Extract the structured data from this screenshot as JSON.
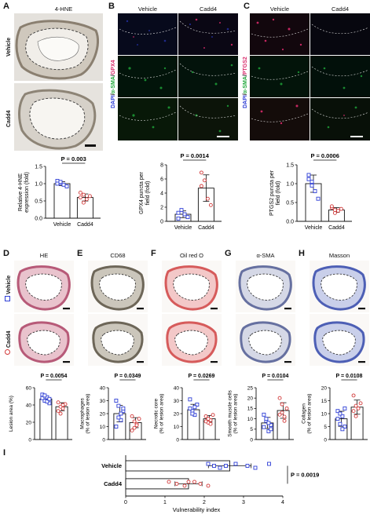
{
  "colors": {
    "vehicle": "#2f3fd6",
    "cadd4": "#d23a3a",
    "dapi": "#2f3fd6",
    "sma": "#1fa83a",
    "gpx4": "#d82a6a"
  },
  "panelA": {
    "label": "A",
    "title": "4-HNE",
    "rows": [
      "Vehicle",
      "Cadd4"
    ]
  },
  "panelB": {
    "label": "B",
    "cols": [
      "Vehicle",
      "Cadd4"
    ],
    "side": [
      "DAPI",
      "/",
      "α-SMA",
      "/",
      "GPX4"
    ]
  },
  "panelC": {
    "label": "C",
    "cols": [
      "Vehicle",
      "Cadd4"
    ],
    "side": [
      "DAPI",
      "/",
      "α-SMA",
      "/",
      "PTGS2"
    ]
  },
  "panelsDH": [
    {
      "label": "D",
      "title": "HE"
    },
    {
      "label": "E",
      "title": "CD68"
    },
    {
      "label": "F",
      "title": "Oil red O"
    },
    {
      "label": "G",
      "title": "α-SMA"
    },
    {
      "label": "H",
      "title": "Masson"
    }
  ],
  "rowLabels": [
    "Vehicle",
    "Cadd4"
  ],
  "chart_data": [
    {
      "type": "bar",
      "panel": "A",
      "categories": [
        "Vehicle",
        "Cadd4"
      ],
      "values": [
        1.0,
        0.6
      ],
      "ylabel": "Relative 4-HNE expression (fold)",
      "ylim": [
        0,
        1.5
      ],
      "yticks": [
        "0.0",
        "0.5",
        "1.0",
        "1.5"
      ],
      "pvalue": "P = 0.003",
      "points": [
        [
          1.08,
          1.02,
          0.97,
          0.92,
          1.0,
          1.05
        ],
        [
          0.74,
          0.45,
          0.55,
          0.64,
          0.6,
          0.68
        ]
      ]
    },
    {
      "type": "bar",
      "panel": "B",
      "categories": [
        "Vehicle",
        "Cadd4"
      ],
      "values": [
        1.0,
        4.7
      ],
      "ylabel": "GPX4 puncta per field (fold)",
      "ylim": [
        0,
        8
      ],
      "yticks": [
        "0",
        "2",
        "4",
        "6",
        "8"
      ],
      "pvalue": "P = 0.0014",
      "points": [
        [
          0.4,
          1.6,
          1.0,
          0.6,
          1.2
        ],
        [
          6.9,
          5.8,
          3.2,
          2.3,
          5.0
        ]
      ]
    },
    {
      "type": "bar",
      "panel": "C",
      "categories": [
        "Vehicle",
        "Cadd4"
      ],
      "values": [
        1.0,
        0.3
      ],
      "ylabel": "PTGS2 puncta per field (fold)",
      "ylim": [
        0,
        1.5
      ],
      "yticks": [
        "0.0",
        "0.5",
        "1.0",
        "1.5"
      ],
      "pvalue": "P = 0.0006",
      "points": [
        [
          1.23,
          1.05,
          0.8,
          0.6,
          1.12,
          0.95
        ],
        [
          0.36,
          0.22,
          0.28,
          0.33,
          0.4,
          0.3
        ]
      ]
    },
    {
      "type": "bar",
      "panel": "D",
      "categories": [
        "",
        ""
      ],
      "values": [
        47,
        38
      ],
      "ylabel": "Lesion area (%)",
      "ylim": [
        0,
        60
      ],
      "yticks": [
        "0",
        "20",
        "40",
        "60"
      ],
      "pvalue": "P = 0.0054",
      "points": [
        [
          52,
          45,
          49,
          42,
          48,
          51,
          44,
          47
        ],
        [
          43,
          30,
          36,
          41,
          33,
          38,
          40
        ]
      ]
    },
    {
      "type": "bar",
      "panel": "E",
      "categories": [
        "",
        ""
      ],
      "values": [
        20,
        13
      ],
      "ylabel": "Macrophages (% of lesion area)",
      "ylim": [
        0,
        40
      ],
      "yticks": [
        "0",
        "10",
        "20",
        "30",
        "40"
      ],
      "pvalue": "P = 0.0349",
      "points": [
        [
          30,
          26,
          15,
          22,
          10,
          17,
          20,
          24
        ],
        [
          18,
          9,
          12,
          16,
          7,
          14,
          11
        ]
      ]
    },
    {
      "type": "bar",
      "panel": "F",
      "categories": [
        "",
        ""
      ],
      "values": [
        23,
        16
      ],
      "ylabel": "Necrotic core (% of lesion area)",
      "ylim": [
        0,
        40
      ],
      "yticks": [
        "0",
        "10",
        "20",
        "30",
        "40"
      ],
      "pvalue": "P = 0.0269",
      "points": [
        [
          31,
          22,
          19,
          27,
          24,
          20,
          25
        ],
        [
          18,
          13,
          15,
          19,
          14,
          16,
          12
        ]
      ]
    },
    {
      "type": "bar",
      "panel": "G",
      "categories": [
        "",
        ""
      ],
      "values": [
        8,
        14
      ],
      "ylabel": "Smooth muscle cells (% of lesion area)",
      "ylim": [
        0,
        25
      ],
      "yticks": [
        "0",
        "5",
        "10",
        "15",
        "20",
        "25"
      ],
      "pvalue": "P = 0.0104",
      "points": [
        [
          12,
          9,
          4,
          7,
          6,
          10,
          8,
          5
        ],
        [
          20,
          17,
          9,
          15,
          12,
          13,
          11
        ]
      ]
    },
    {
      "type": "bar",
      "panel": "H",
      "categories": [
        "",
        ""
      ],
      "values": [
        8,
        12.5
      ],
      "ylabel": "Collagen (% of lesion area)",
      "ylim": [
        0,
        20
      ],
      "yticks": [
        "0",
        "5",
        "10",
        "15",
        "20"
      ],
      "pvalue": "P = 0.0108",
      "points": [
        [
          11,
          6,
          9,
          5,
          8,
          10,
          4,
          12
        ],
        [
          17,
          9,
          12,
          14,
          11,
          13
        ]
      ]
    },
    {
      "type": "bar",
      "panel": "I",
      "orientation": "horizontal",
      "categories": [
        "Vehicle",
        "Cadd4"
      ],
      "values": [
        2.65,
        1.6
      ],
      "xlabel": "Vulnerability index",
      "xlim": [
        0,
        4
      ],
      "xticks": [
        "0",
        "1",
        "2",
        "3",
        "4"
      ],
      "pvalue": "P = 0.0019",
      "points": [
        [
          2.1,
          2.25,
          2.4,
          2.8,
          3.1,
          3.3,
          3.65,
          2.55
        ],
        [
          1.1,
          1.3,
          1.5,
          1.75,
          1.9,
          2.1,
          1.6
        ]
      ]
    }
  ]
}
